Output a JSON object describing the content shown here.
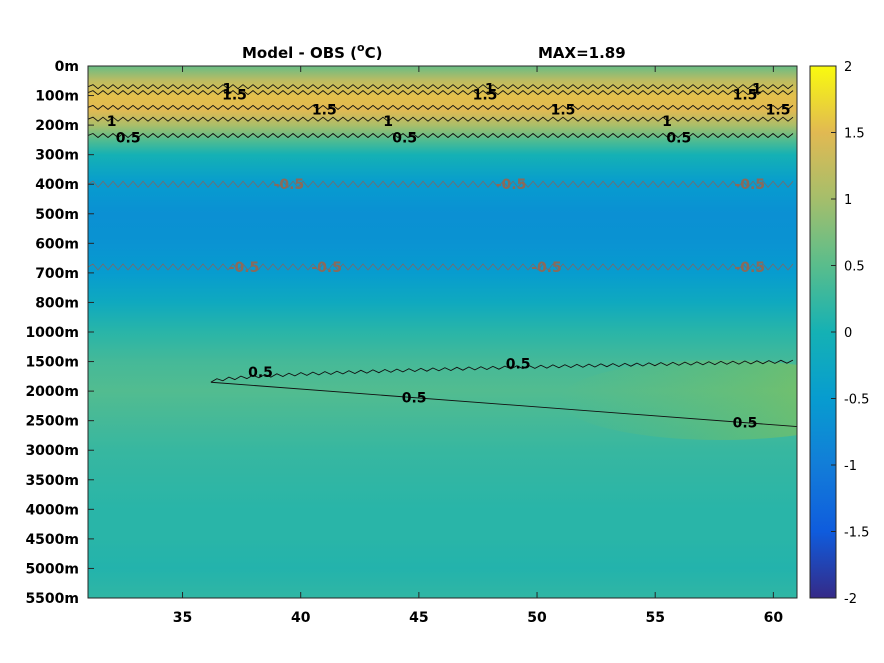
{
  "title": "Model - OBS (",
  "title_unit_sup": "o",
  "title_unit_end": "C)",
  "max_label": "MAX=1.89",
  "chart_data": {
    "type": "heatmap",
    "title": "Model - OBS (oC)",
    "annotation": "MAX=1.89",
    "max_value": 1.89,
    "colormap": "parula",
    "x": {
      "range": [
        31,
        61
      ],
      "ticks": [
        35,
        40,
        45,
        50,
        55,
        60
      ],
      "tick_labels": [
        "35",
        "40",
        "45",
        "50",
        "55",
        "60"
      ]
    },
    "y": {
      "direction": "reversed",
      "tick_labels": [
        "0m",
        "100m",
        "200m",
        "300m",
        "400m",
        "500m",
        "600m",
        "700m",
        "800m",
        "1000m",
        "1500m",
        "2000m",
        "2500m",
        "3000m",
        "3500m",
        "4000m",
        "4500m",
        "5000m",
        "5500m"
      ],
      "depths": [
        0,
        100,
        200,
        300,
        400,
        500,
        600,
        700,
        800,
        1000,
        1500,
        2000,
        2500,
        3000,
        3500,
        4000,
        4500,
        5000,
        5500
      ]
    },
    "colorbar": {
      "range": [
        -2,
        2
      ],
      "ticks": [
        2,
        1.5,
        1,
        0.5,
        0,
        -0.5,
        -1,
        -1.5,
        -2
      ],
      "tick_labels": [
        "2",
        "1.5",
        "1",
        "0.5",
        "0",
        "-0.5",
        "-1",
        "-1.5",
        "-2"
      ]
    },
    "depth_profile": [
      {
        "depth": 0,
        "value": 0.6
      },
      {
        "depth": 50,
        "value": 1.2
      },
      {
        "depth": 100,
        "value": 1.55
      },
      {
        "depth": 150,
        "value": 1.5
      },
      {
        "depth": 200,
        "value": 1.05
      },
      {
        "depth": 250,
        "value": 0.45
      },
      {
        "depth": 300,
        "value": 0.0
      },
      {
        "depth": 400,
        "value": -0.5
      },
      {
        "depth": 500,
        "value": -0.7
      },
      {
        "depth": 600,
        "value": -0.65
      },
      {
        "depth": 700,
        "value": -0.5
      },
      {
        "depth": 800,
        "value": -0.2
      },
      {
        "depth": 1000,
        "value": 0.15
      },
      {
        "depth": 1500,
        "value": 0.35
      },
      {
        "depth": 2000,
        "value": 0.45
      },
      {
        "depth": 2500,
        "value": 0.35
      },
      {
        "depth": 3000,
        "value": 0.25
      },
      {
        "depth": 3500,
        "value": 0.2
      },
      {
        "depth": 4000,
        "value": 0.15
      },
      {
        "depth": 4500,
        "value": 0.15
      },
      {
        "depth": 5000,
        "value": 0.1
      },
      {
        "depth": 5500,
        "value": 0.2
      }
    ],
    "contours": [
      {
        "level": 1,
        "depth": 70,
        "labels": [
          {
            "text": "1",
            "x": 36.9
          },
          {
            "text": "1",
            "x": 48.0
          },
          {
            "text": "1",
            "x": 59.3
          }
        ]
      },
      {
        "level": 1.5,
        "depth": 90,
        "labels": [
          {
            "text": "1.5",
            "x": 37.2
          },
          {
            "text": "1.5",
            "x": 47.8
          },
          {
            "text": "1.5",
            "x": 58.8
          }
        ]
      },
      {
        "level": 1.5,
        "depth": 140,
        "labels": [
          {
            "text": "1.5",
            "x": 41.0
          },
          {
            "text": "1.5",
            "x": 51.1
          },
          {
            "text": "1.5",
            "x": 60.2
          }
        ]
      },
      {
        "level": 1,
        "depth": 180,
        "labels": [
          {
            "text": "1",
            "x": 32.0
          },
          {
            "text": "1",
            "x": 43.7
          },
          {
            "text": "1",
            "x": 55.5
          }
        ]
      },
      {
        "level": 0.5,
        "depth": 235,
        "labels": [
          {
            "text": "0.5",
            "x": 32.7
          },
          {
            "text": "0.5",
            "x": 44.4
          },
          {
            "text": "0.5",
            "x": 56.0
          }
        ]
      },
      {
        "level": -0.5,
        "depth": 400,
        "labels": [
          {
            "text": "-0.5",
            "x": 39.5
          },
          {
            "text": "-0.5",
            "x": 48.9
          },
          {
            "text": "-0.5",
            "x": 59.0
          }
        ]
      },
      {
        "level": -0.5,
        "depth": 680,
        "labels": [
          {
            "text": "-0.5",
            "x": 37.6
          },
          {
            "text": "-0.5",
            "x": 41.1
          },
          {
            "text": "-0.5",
            "x": 50.4
          },
          {
            "text": "-0.5",
            "x": 59.0
          }
        ]
      },
      {
        "level": 0.5,
        "closed_to": 36.2,
        "upper_depth": [
          1850,
          1500
        ],
        "lower_depth": [
          2020,
          2600
        ],
        "labels": [
          {
            "text": "0.5",
            "x": 38.3
          },
          {
            "text": "0.5",
            "x": 49.2
          },
          {
            "text": "0.5",
            "x": 44.8
          },
          {
            "text": "0.5",
            "x": 58.8
          }
        ]
      }
    ]
  }
}
